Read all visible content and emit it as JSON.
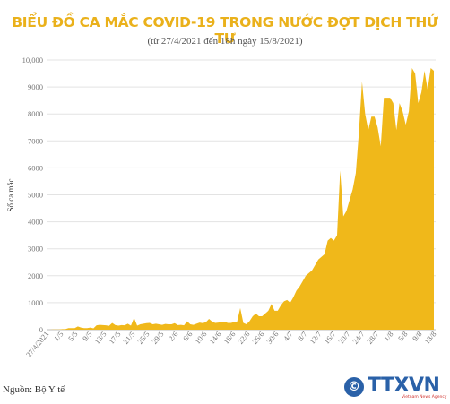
{
  "title": "BIỂU ĐỒ CA MẮC COVID-19 TRONG NƯỚC ĐỢT DỊCH THỨ TƯ",
  "subtitle": "(từ 27/4/2021 đến 18h ngày 15/8/2021)",
  "source": "Nguồn: Bộ Y tế",
  "logo": {
    "text": "TTXVN",
    "tagline": "Vietnam News Agency"
  },
  "colors": {
    "fill": "#f0b81a",
    "title": "#eab11b",
    "grid": "#e3e3e3"
  },
  "chart_data": {
    "type": "area",
    "ylabel": "Số ca mắc",
    "ylim": [
      0,
      10000
    ],
    "yticks": [
      "0",
      "1000",
      "2000",
      "3000",
      "4000",
      "5000",
      "6000",
      "7000",
      "8000",
      "9000",
      "10,000"
    ],
    "xticks": [
      "27/4/2021",
      "1/5",
      "5/5",
      "9/5",
      "13/5",
      "17/5",
      "21/5",
      "25/5",
      "29/5",
      "2/6",
      "6/6",
      "10/6",
      "14/6",
      "18/6",
      "22/6",
      "26/6",
      "30/6",
      "4/7",
      "8/7",
      "12/7",
      "16/7",
      "20/7",
      "24/7",
      "28/7",
      "1/8",
      "5/8",
      "9/8",
      "13/8"
    ],
    "grid": true,
    "series": [
      {
        "values": [
          0,
          0,
          10,
          10,
          10,
          20,
          20,
          60,
          60,
          60,
          120,
          80,
          60,
          60,
          80,
          50,
          160,
          180,
          170,
          160,
          140,
          250,
          170,
          150,
          170,
          160,
          220,
          150,
          440,
          150,
          200,
          220,
          240,
          250,
          200,
          220,
          200,
          180,
          210,
          200,
          200,
          240,
          170,
          180,
          160,
          310,
          200,
          180,
          220,
          260,
          240,
          280,
          400,
          300,
          250,
          260,
          280,
          300,
          250,
          250,
          280,
          300,
          800,
          250,
          200,
          320,
          500,
          600,
          500,
          500,
          600,
          700,
          950,
          700,
          700,
          900,
          1050,
          1100,
          1000,
          1200,
          1450,
          1600,
          1800,
          2000,
          2100,
          2200,
          2400,
          2600,
          2700,
          2800,
          3300,
          3400,
          3300,
          3500,
          5900,
          4200,
          4400,
          4800,
          5200,
          5800,
          7300,
          9200,
          8000,
          7400,
          7900,
          7900,
          7500,
          6800,
          8600,
          8600,
          8600,
          8400,
          7400,
          8400,
          8100,
          7600,
          8100,
          9700,
          9500,
          8400,
          8800,
          9600,
          8900,
          9700,
          9600
        ]
      }
    ]
  }
}
